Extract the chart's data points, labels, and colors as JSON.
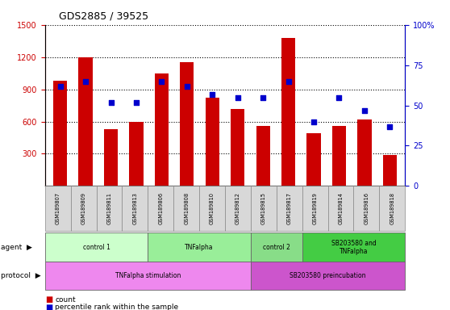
{
  "title": "GDS2885 / 39525",
  "samples": [
    "GSM189807",
    "GSM189809",
    "GSM189811",
    "GSM189813",
    "GSM189806",
    "GSM189808",
    "GSM189810",
    "GSM189812",
    "GSM189815",
    "GSM189817",
    "GSM189819",
    "GSM189814",
    "GSM189816",
    "GSM189818"
  ],
  "counts": [
    980,
    1200,
    530,
    600,
    1050,
    1150,
    820,
    720,
    560,
    1380,
    490,
    560,
    620,
    290
  ],
  "percentile_ranks": [
    62,
    65,
    52,
    52,
    65,
    62,
    57,
    55,
    55,
    65,
    40,
    55,
    47,
    37
  ],
  "ylim_left": [
    0,
    1500
  ],
  "ylim_right": [
    0,
    100
  ],
  "yticks_left": [
    300,
    600,
    900,
    1200,
    1500
  ],
  "yticks_right": [
    0,
    25,
    50,
    75,
    100
  ],
  "bar_color": "#cc0000",
  "dot_color": "#0000cc",
  "agent_groups": [
    {
      "label": "control 1",
      "start": 0,
      "end": 4,
      "color": "#ccffcc"
    },
    {
      "label": "TNFalpha",
      "start": 4,
      "end": 8,
      "color": "#99ee99"
    },
    {
      "label": "control 2",
      "start": 8,
      "end": 10,
      "color": "#88dd88"
    },
    {
      "label": "SB203580 and\nTNFalpha",
      "start": 10,
      "end": 14,
      "color": "#44cc44"
    }
  ],
  "protocol_groups": [
    {
      "label": "TNFalpha stimulation",
      "start": 0,
      "end": 8,
      "color": "#ee88ee"
    },
    {
      "label": "SB203580 preincubation",
      "start": 8,
      "end": 14,
      "color": "#cc55cc"
    }
  ],
  "legend_count_label": "count",
  "legend_pct_label": "percentile rank within the sample",
  "legend_count_color": "#cc0000",
  "legend_pct_color": "#0000cc",
  "bg_color": "#ffffff",
  "sample_box_color": "#d8d8d8",
  "grid_color": "#aaaaaa",
  "left_tick_color": "#cc0000",
  "right_tick_color": "#0000cc"
}
